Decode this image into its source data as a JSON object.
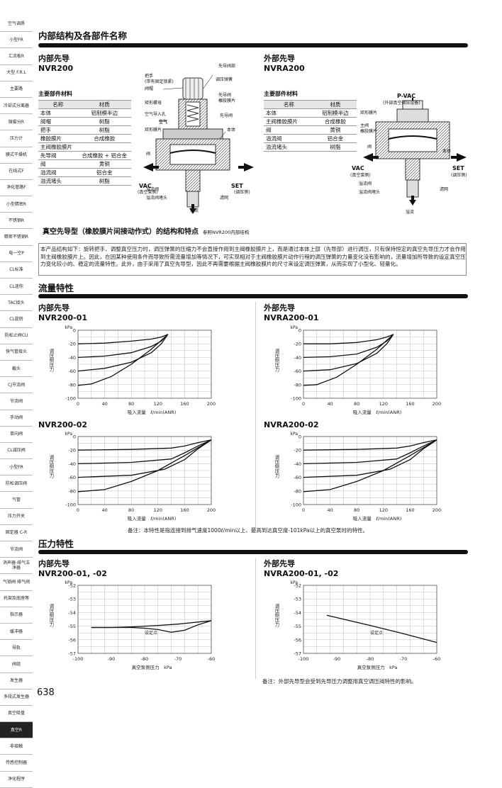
{
  "sidebar": [
    {
      "label": "空气调质",
      "active": false
    },
    {
      "label": "小型FR",
      "active": false
    },
    {
      "label": "汇流板R",
      "active": false
    },
    {
      "label": "大型 F.R.L",
      "active": false
    },
    {
      "label": "主要路",
      "active": false
    },
    {
      "label": "冷却式分离器",
      "active": false
    },
    {
      "label": "微雾分R",
      "active": false
    },
    {
      "label": "压力计",
      "active": false
    },
    {
      "label": "膜式干燥机",
      "active": false
    },
    {
      "label": "在线式F",
      "active": false
    },
    {
      "label": "净化管路F",
      "active": false
    },
    {
      "label": "小型精密R",
      "active": false
    },
    {
      "label": "不锈钢R",
      "active": false
    },
    {
      "label": "精密不锈钢R",
      "active": false
    },
    {
      "label": "电一空P",
      "active": false
    },
    {
      "label": "CL标准",
      "active": false
    },
    {
      "label": "CL迷你",
      "active": false
    },
    {
      "label": "TAC接头",
      "active": false
    },
    {
      "label": "CL旋转",
      "active": false
    },
    {
      "label": "防松止阀CU",
      "active": false
    },
    {
      "label": "快气管接头",
      "active": false
    },
    {
      "label": "截头",
      "active": false
    },
    {
      "label": "CJ节流阀",
      "active": false
    },
    {
      "label": "节流阀",
      "active": false
    },
    {
      "label": "手动阀",
      "active": false
    },
    {
      "label": "单向阀",
      "active": false
    },
    {
      "label": "CL减压阀",
      "active": false
    },
    {
      "label": "小型FR",
      "active": false
    },
    {
      "label": "防松调压阀",
      "active": false
    },
    {
      "label": "气管",
      "active": false
    },
    {
      "label": "压力开关",
      "active": false
    },
    {
      "label": "固定器 C-R",
      "active": false
    },
    {
      "label": "节流阀",
      "active": false
    },
    {
      "label": "消声器·排气洁净器",
      "active": false
    },
    {
      "label": "气锁阀·排气阀",
      "active": false
    },
    {
      "label": "托架及底座等",
      "active": false
    },
    {
      "label": "指示器",
      "active": false
    },
    {
      "label": "缓冲器",
      "active": false
    },
    {
      "label": "导轨",
      "active": false
    },
    {
      "label": "阀组",
      "active": false
    },
    {
      "label": "发生器",
      "active": false
    },
    {
      "label": "多段式发生器",
      "active": false
    },
    {
      "label": "真空吸盘",
      "active": false
    },
    {
      "label": "真空R",
      "active": true
    },
    {
      "label": "非接触",
      "active": false
    },
    {
      "label": "传感控制器",
      "active": false
    },
    {
      "label": "净化程序",
      "active": false
    }
  ],
  "sections": {
    "internal": "内部结构及各部件名称",
    "flow": "流量特性",
    "pressure": "压力特性"
  },
  "left_model": {
    "line1": "内部先导",
    "line2": "NVR200"
  },
  "right_model": {
    "line1": "外部先导",
    "line2": "NVRA200"
  },
  "materials_heading": "主要部件材料",
  "materials_left": {
    "headers": [
      "名称",
      "材质"
    ],
    "rows": [
      [
        "本体",
        "铝制模半边"
      ],
      [
        "阀帽",
        "树脂"
      ],
      [
        "把手",
        "树脂"
      ],
      [
        "橡胶膜片",
        "合成橡胶"
      ],
      [
        "主阀橡胶膜片",
        ""
      ],
      [
        "先导阀",
        "合成橡胶 + 铝合金"
      ],
      [
        "阀",
        "黄铜"
      ],
      [
        "溢流阀",
        "铝合金"
      ],
      [
        "溢流堵头",
        "树脂"
      ]
    ]
  },
  "materials_right": {
    "headers": [
      "名称",
      "材质"
    ],
    "rows": [
      [
        "本体",
        "铝制模半边"
      ],
      [
        "主阀橡胶膜片",
        "合成橡胶"
      ],
      [
        "阀",
        "黄铜"
      ],
      [
        "溢流阀",
        "铝合金"
      ],
      [
        "溢流堵头",
        "树脂"
      ]
    ]
  },
  "diagram_left": {
    "labels": [
      "把手",
      "(带有固定锁紧)",
      "阀帽",
      "矩形螺母",
      "空气导入孔",
      "空气",
      "矩形膜片",
      "先导阀部",
      "调压弹簧",
      "先导阀",
      "橡胶膜片",
      "先导阀",
      "本体",
      "阀",
      "VAC",
      "(真空泵侧)",
      "SET",
      "(调压侧)",
      "溢流阀",
      "溢流阀堵头",
      "滤网",
      "溢流"
    ]
  },
  "diagram_right": {
    "labels": [
      "P-VAC",
      "(外部真空调压设备)",
      "矩形膜片",
      "主阀",
      "橡胶膜片",
      "本体",
      "阀",
      "VAC",
      "(真空泵侧)",
      "SET",
      "(调压侧)",
      "溢流阀",
      "溢流阀堵头",
      "滤网",
      "溢流"
    ]
  },
  "feature": {
    "title": "真空先导型（橡胶膜片间接动作式）的结构和特点",
    "ref": "参照NVR200内部结构",
    "text": "本产品结构如下：旋转把手、调整真空压力时，调压弹簧的压缩力不会直接作用到主阀橡胶膜片上，而是通过本体上部（先导部）进行调压，只有保持恒定的真空先导压力才会作用到主阀橡胶膜片上。因此，在因某种使用条件而导致所需流量增加等情况下，可实现相对于主阀橡胶膜片动作行程的调压弹簧的力量变化没有影响的，流量增加所导致的设定真空压力变化较小的、稳定的流量特性。此外，由于采用了真空先导型，因此不再需要根据主阀橡胶膜片的尺寸来设定调压弹簧，从而实现了小型化、轻量化。"
  },
  "flow_charts": [
    {
      "title_l1": "内部先导",
      "title_l2": "NVR200-01"
    },
    {
      "title_l1": "外部先导",
      "title_l2": "NVRA200-01"
    },
    {
      "title_l1": "",
      "title_l2": "NVR200-02"
    },
    {
      "title_l1": "",
      "title_l2": "NVRA200-02"
    }
  ],
  "flow_note": "备注：本特性是指连接到排气速度1000ℓ/min以上、最高到达真空度-101kPa以上的真空泵时的特性。",
  "pressure_charts": [
    {
      "title_l1": "内部先导",
      "title_l2": "NVR200-01, -02"
    },
    {
      "title_l1": "外部先导",
      "title_l2": "NVRA200-01, -02"
    }
  ],
  "pressure_note": "备注：外部先导型会受到先导压力调整用真空调压阀特性的影响。",
  "page_number": "638",
  "chart_data": [
    {
      "type": "line",
      "title": "NVR200-01",
      "xlabel": "吸入流量　ℓ/min(ANR)",
      "ylabel": "调压侧压力",
      "yunit": "kPa",
      "xlim": [
        0,
        200
      ],
      "ylim": [
        -100,
        0
      ],
      "xticks": [
        0,
        40,
        80,
        120,
        160,
        200
      ],
      "yticks": [
        0,
        -20,
        -40,
        -60,
        -80,
        -100
      ],
      "series": [
        {
          "x": [
            0,
            40,
            80,
            110,
            125,
            135
          ],
          "y": [
            -20,
            -19,
            -16,
            -13,
            -10,
            -6
          ]
        },
        {
          "x": [
            0,
            40,
            80,
            110,
            125,
            135
          ],
          "y": [
            -40,
            -38,
            -33,
            -24,
            -16,
            -6
          ]
        },
        {
          "x": [
            0,
            40,
            80,
            110,
            125,
            135
          ],
          "y": [
            -60,
            -56,
            -47,
            -33,
            -20,
            -6
          ]
        },
        {
          "x": [
            0,
            20,
            50,
            80,
            110,
            135
          ],
          "y": [
            -81,
            -79,
            -68,
            -50,
            -28,
            -6
          ]
        }
      ]
    },
    {
      "type": "line",
      "title": "NVRA200-01",
      "xlabel": "吸入流量　ℓ/min(ANR)",
      "ylabel": "调压侧压力",
      "yunit": "kPa",
      "xlim": [
        0,
        200
      ],
      "ylim": [
        -100,
        0
      ],
      "xticks": [
        0,
        40,
        80,
        120,
        160,
        200
      ],
      "yticks": [
        0,
        -20,
        -40,
        -60,
        -80,
        -100
      ],
      "series": [
        {
          "x": [
            0,
            40,
            80,
            110,
            125,
            135
          ],
          "y": [
            -20,
            -20,
            -18,
            -14,
            -10,
            -6
          ]
        },
        {
          "x": [
            0,
            40,
            80,
            110,
            125,
            135
          ],
          "y": [
            -40,
            -39,
            -35,
            -25,
            -16,
            -6
          ]
        },
        {
          "x": [
            0,
            40,
            80,
            110,
            125,
            135
          ],
          "y": [
            -60,
            -58,
            -49,
            -34,
            -20,
            -6
          ]
        },
        {
          "x": [
            0,
            20,
            50,
            80,
            110,
            135
          ],
          "y": [
            -81,
            -80,
            -69,
            -50,
            -28,
            -6
          ]
        }
      ]
    },
    {
      "type": "line",
      "title": "NVR200-02",
      "xlabel": "吸入流量　ℓ/min(ANR)",
      "ylabel": "调压侧压力",
      "yunit": "kPa",
      "xlim": [
        0,
        200
      ],
      "ylim": [
        -100,
        0
      ],
      "xticks": [
        0,
        40,
        80,
        120,
        160,
        200
      ],
      "yticks": [
        0,
        -20,
        -40,
        -60,
        -80,
        -100
      ],
      "series": [
        {
          "x": [
            0,
            80,
            140,
            160,
            180,
            200
          ],
          "y": [
            -20,
            -19,
            -17,
            -14,
            -9,
            -5
          ]
        },
        {
          "x": [
            0,
            80,
            140,
            160,
            180,
            200
          ],
          "y": [
            -40,
            -38,
            -33,
            -24,
            -14,
            -5
          ]
        },
        {
          "x": [
            0,
            80,
            130,
            160,
            180,
            200
          ],
          "y": [
            -60,
            -57,
            -48,
            -34,
            -18,
            -5
          ]
        },
        {
          "x": [
            0,
            40,
            80,
            120,
            160,
            200
          ],
          "y": [
            -81,
            -78,
            -66,
            -50,
            -28,
            -5
          ]
        }
      ]
    },
    {
      "type": "line",
      "title": "NVRA200-02",
      "xlabel": "吸入流量　ℓ/min(ANR)",
      "ylabel": "调压侧压力",
      "yunit": "kPa",
      "xlim": [
        0,
        200
      ],
      "ylim": [
        -100,
        0
      ],
      "xticks": [
        0,
        40,
        80,
        120,
        160,
        200
      ],
      "yticks": [
        0,
        -20,
        -40,
        -60,
        -80,
        -100
      ],
      "series": [
        {
          "x": [
            0,
            80,
            140,
            160,
            180,
            200
          ],
          "y": [
            -20,
            -19,
            -17,
            -14,
            -9,
            -5
          ]
        },
        {
          "x": [
            0,
            80,
            140,
            160,
            180,
            200
          ],
          "y": [
            -40,
            -38,
            -33,
            -24,
            -14,
            -5
          ]
        },
        {
          "x": [
            0,
            80,
            130,
            160,
            180,
            200
          ],
          "y": [
            -60,
            -57,
            -48,
            -34,
            -18,
            -5
          ]
        },
        {
          "x": [
            0,
            40,
            80,
            120,
            160,
            200
          ],
          "y": [
            -81,
            -78,
            -66,
            -50,
            -28,
            -5
          ]
        }
      ]
    },
    {
      "type": "line",
      "title": "NVR200-01, -02",
      "xlabel": "真空泵侧压力　kPa",
      "ylabel": "调压侧压力",
      "yunit": "kPa",
      "xlim": [
        -100,
        -60
      ],
      "ylim": [
        -57,
        -52
      ],
      "xticks": [
        -100,
        -90,
        -80,
        -70,
        -60
      ],
      "yticks": [
        -52,
        -53,
        -54,
        -55,
        -56,
        -57
      ],
      "annotation": "设定点",
      "series": [
        {
          "x": [
            -96,
            -90,
            -84,
            -80,
            -76,
            -70,
            -64,
            -60
          ],
          "y": [
            -55.1,
            -55.1,
            -55.05,
            -55.0,
            -54.95,
            -54.85,
            -54.7,
            -54.6
          ]
        },
        {
          "x": [
            -96,
            -90,
            -84,
            -80,
            -76,
            -72,
            -68,
            -64,
            -60
          ],
          "y": [
            -55.1,
            -55.1,
            -55.1,
            -55.15,
            -55.25,
            -55.45,
            -55.3,
            -54.9,
            -54.6
          ]
        }
      ]
    },
    {
      "type": "line",
      "title": "NVRA200-01, -02",
      "xlabel": "真空泵侧压力　kPa",
      "ylabel": "调压侧压力",
      "yunit": "kPa",
      "xlim": [
        -100,
        -60
      ],
      "ylim": [
        -57,
        -52
      ],
      "xticks": [
        -100,
        -90,
        -80,
        -70,
        -60
      ],
      "yticks": [
        -52,
        -53,
        -54,
        -55,
        -56,
        -57
      ],
      "annotation": "设定点",
      "series": [
        {
          "x": [
            -93,
            -80,
            -70,
            -60
          ],
          "y": [
            -54.2,
            -54.95,
            -55.55,
            -56.2
          ]
        }
      ]
    }
  ]
}
